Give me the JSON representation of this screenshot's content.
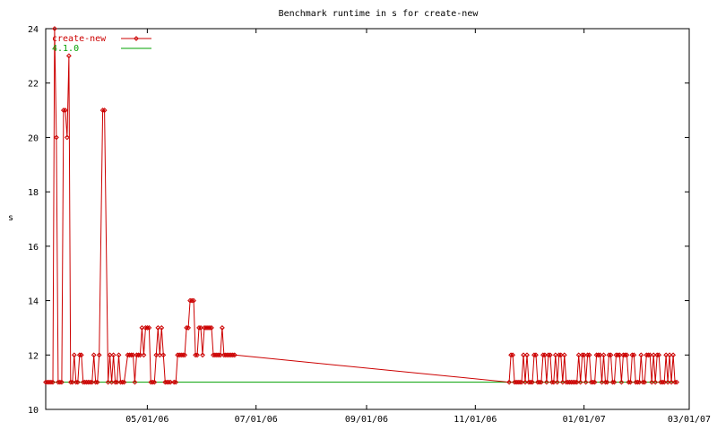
{
  "chart_data": {
    "type": "line",
    "title": "Benchmark runtime in s for create-new",
    "xlabel": "",
    "ylabel": "s",
    "x_axis_type": "date",
    "xlim": [
      "2006-03-05",
      "2007-03-01"
    ],
    "ylim": [
      10,
      24
    ],
    "yticks": [
      10,
      12,
      14,
      16,
      18,
      20,
      22,
      24
    ],
    "xticks": [
      "2006-05-01",
      "2006-07-01",
      "2006-09-01",
      "2006-11-01",
      "2007-01-01",
      "2007-03-01"
    ],
    "xtick_labels": [
      "05/01/06",
      "07/01/06",
      "09/01/06",
      "11/01/06",
      "01/01/07",
      "03/01/07"
    ],
    "grid": false,
    "legend_position": "top-left",
    "series": [
      {
        "name": "create-new",
        "color": "#cc0000",
        "marker": "diamond",
        "points": [
          [
            "2006-03-05",
            11
          ],
          [
            "2006-03-06",
            11
          ],
          [
            "2006-03-07",
            11
          ],
          [
            "2006-03-08",
            11
          ],
          [
            "2006-03-09",
            11
          ],
          [
            "2006-03-10",
            24
          ],
          [
            "2006-03-11",
            20
          ],
          [
            "2006-03-12",
            11
          ],
          [
            "2006-03-13",
            11
          ],
          [
            "2006-03-14",
            11
          ],
          [
            "2006-03-15",
            21
          ],
          [
            "2006-03-16",
            21
          ],
          [
            "2006-03-17",
            20
          ],
          [
            "2006-03-18",
            23
          ],
          [
            "2006-03-19",
            11
          ],
          [
            "2006-03-20",
            11
          ],
          [
            "2006-03-21",
            12
          ],
          [
            "2006-03-22",
            11
          ],
          [
            "2006-03-23",
            11
          ],
          [
            "2006-03-24",
            12
          ],
          [
            "2006-03-25",
            12
          ],
          [
            "2006-03-26",
            11
          ],
          [
            "2006-03-27",
            11
          ],
          [
            "2006-03-28",
            11
          ],
          [
            "2006-03-29",
            11
          ],
          [
            "2006-03-30",
            11
          ],
          [
            "2006-03-31",
            11
          ],
          [
            "2006-04-01",
            12
          ],
          [
            "2006-04-02",
            11
          ],
          [
            "2006-04-03",
            11
          ],
          [
            "2006-04-04",
            12
          ],
          [
            "2006-04-06",
            21
          ],
          [
            "2006-04-07",
            21
          ],
          [
            "2006-04-09",
            11
          ],
          [
            "2006-04-10",
            12
          ],
          [
            "2006-04-11",
            11
          ],
          [
            "2006-04-12",
            12
          ],
          [
            "2006-04-13",
            11
          ],
          [
            "2006-04-14",
            11
          ],
          [
            "2006-04-15",
            12
          ],
          [
            "2006-04-16",
            11
          ],
          [
            "2006-04-17",
            11
          ],
          [
            "2006-04-18",
            11
          ],
          [
            "2006-04-20",
            12
          ],
          [
            "2006-04-21",
            12
          ],
          [
            "2006-04-22",
            12
          ],
          [
            "2006-04-23",
            12
          ],
          [
            "2006-04-24",
            11
          ],
          [
            "2006-04-25",
            12
          ],
          [
            "2006-04-26",
            12
          ],
          [
            "2006-04-27",
            12
          ],
          [
            "2006-04-28",
            13
          ],
          [
            "2006-04-29",
            12
          ],
          [
            "2006-04-30",
            13
          ],
          [
            "2006-05-01",
            13
          ],
          [
            "2006-05-02",
            13
          ],
          [
            "2006-05-03",
            11
          ],
          [
            "2006-05-04",
            11
          ],
          [
            "2006-05-05",
            11
          ],
          [
            "2006-05-06",
            12
          ],
          [
            "2006-05-07",
            13
          ],
          [
            "2006-05-08",
            12
          ],
          [
            "2006-05-09",
            13
          ],
          [
            "2006-05-10",
            12
          ],
          [
            "2006-05-11",
            11
          ],
          [
            "2006-05-12",
            11
          ],
          [
            "2006-05-13",
            11
          ],
          [
            "2006-05-14",
            11
          ],
          [
            "2006-05-16",
            11
          ],
          [
            "2006-05-17",
            11
          ],
          [
            "2006-05-18",
            12
          ],
          [
            "2006-05-19",
            12
          ],
          [
            "2006-05-20",
            12
          ],
          [
            "2006-05-21",
            12
          ],
          [
            "2006-05-22",
            12
          ],
          [
            "2006-05-23",
            13
          ],
          [
            "2006-05-24",
            13
          ],
          [
            "2006-05-25",
            14
          ],
          [
            "2006-05-26",
            14
          ],
          [
            "2006-05-27",
            14
          ],
          [
            "2006-05-28",
            12
          ],
          [
            "2006-05-29",
            12
          ],
          [
            "2006-05-30",
            13
          ],
          [
            "2006-05-31",
            13
          ],
          [
            "2006-06-01",
            12
          ],
          [
            "2006-06-02",
            13
          ],
          [
            "2006-06-03",
            13
          ],
          [
            "2006-06-04",
            13
          ],
          [
            "2006-06-05",
            13
          ],
          [
            "2006-06-06",
            13
          ],
          [
            "2006-06-07",
            12
          ],
          [
            "2006-06-08",
            12
          ],
          [
            "2006-06-09",
            12
          ],
          [
            "2006-06-10",
            12
          ],
          [
            "2006-06-11",
            12
          ],
          [
            "2006-06-12",
            13
          ],
          [
            "2006-06-13",
            12
          ],
          [
            "2006-06-14",
            12
          ],
          [
            "2006-06-15",
            12
          ],
          [
            "2006-06-16",
            12
          ],
          [
            "2006-06-17",
            12
          ],
          [
            "2006-06-18",
            12
          ],
          [
            "2006-06-19",
            12
          ],
          [
            "2006-11-20",
            11
          ],
          [
            "2006-11-21",
            12
          ],
          [
            "2006-11-22",
            12
          ],
          [
            "2006-11-23",
            11
          ],
          [
            "2006-11-24",
            11
          ],
          [
            "2006-11-25",
            11
          ],
          [
            "2006-11-26",
            11
          ],
          [
            "2006-11-27",
            11
          ],
          [
            "2006-11-28",
            12
          ],
          [
            "2006-11-29",
            11
          ],
          [
            "2006-11-30",
            12
          ],
          [
            "2006-12-01",
            11
          ],
          [
            "2006-12-02",
            11
          ],
          [
            "2006-12-03",
            11
          ],
          [
            "2006-12-04",
            12
          ],
          [
            "2006-12-05",
            12
          ],
          [
            "2006-12-06",
            11
          ],
          [
            "2006-12-07",
            11
          ],
          [
            "2006-12-08",
            11
          ],
          [
            "2006-12-09",
            12
          ],
          [
            "2006-12-10",
            12
          ],
          [
            "2006-12-11",
            11
          ],
          [
            "2006-12-12",
            12
          ],
          [
            "2006-12-13",
            12
          ],
          [
            "2006-12-14",
            11
          ],
          [
            "2006-12-15",
            11
          ],
          [
            "2006-12-16",
            12
          ],
          [
            "2006-12-17",
            11
          ],
          [
            "2006-12-18",
            12
          ],
          [
            "2006-12-19",
            12
          ],
          [
            "2006-12-20",
            11
          ],
          [
            "2006-12-21",
            12
          ],
          [
            "2006-12-22",
            11
          ],
          [
            "2006-12-23",
            11
          ],
          [
            "2006-12-24",
            11
          ],
          [
            "2006-12-25",
            11
          ],
          [
            "2006-12-26",
            11
          ],
          [
            "2006-12-27",
            11
          ],
          [
            "2006-12-28",
            11
          ],
          [
            "2006-12-29",
            12
          ],
          [
            "2006-12-30",
            11
          ],
          [
            "2006-12-31",
            12
          ],
          [
            "2007-01-01",
            12
          ],
          [
            "2007-01-02",
            11
          ],
          [
            "2007-01-03",
            12
          ],
          [
            "2007-01-04",
            12
          ],
          [
            "2007-01-05",
            11
          ],
          [
            "2007-01-06",
            11
          ],
          [
            "2007-01-07",
            11
          ],
          [
            "2007-01-08",
            12
          ],
          [
            "2007-01-09",
            12
          ],
          [
            "2007-01-10",
            12
          ],
          [
            "2007-01-11",
            11
          ],
          [
            "2007-01-12",
            12
          ],
          [
            "2007-01-13",
            11
          ],
          [
            "2007-01-14",
            11
          ],
          [
            "2007-01-15",
            12
          ],
          [
            "2007-01-16",
            12
          ],
          [
            "2007-01-17",
            11
          ],
          [
            "2007-01-18",
            11
          ],
          [
            "2007-01-19",
            12
          ],
          [
            "2007-01-20",
            12
          ],
          [
            "2007-01-21",
            12
          ],
          [
            "2007-01-22",
            11
          ],
          [
            "2007-01-23",
            12
          ],
          [
            "2007-01-24",
            12
          ],
          [
            "2007-01-25",
            12
          ],
          [
            "2007-01-26",
            11
          ],
          [
            "2007-01-27",
            11
          ],
          [
            "2007-01-28",
            12
          ],
          [
            "2007-01-29",
            12
          ],
          [
            "2007-01-30",
            11
          ],
          [
            "2007-01-31",
            11
          ],
          [
            "2007-02-01",
            11
          ],
          [
            "2007-02-02",
            12
          ],
          [
            "2007-02-03",
            11
          ],
          [
            "2007-02-04",
            11
          ],
          [
            "2007-02-05",
            12
          ],
          [
            "2007-02-06",
            12
          ],
          [
            "2007-02-07",
            12
          ],
          [
            "2007-02-08",
            11
          ],
          [
            "2007-02-09",
            12
          ],
          [
            "2007-02-10",
            11
          ],
          [
            "2007-02-11",
            12
          ],
          [
            "2007-02-12",
            12
          ],
          [
            "2007-02-13",
            11
          ],
          [
            "2007-02-14",
            11
          ],
          [
            "2007-02-15",
            11
          ],
          [
            "2007-02-16",
            12
          ],
          [
            "2007-02-17",
            11
          ],
          [
            "2007-02-18",
            12
          ],
          [
            "2007-02-19",
            11
          ],
          [
            "2007-02-20",
            12
          ],
          [
            "2007-02-21",
            11
          ],
          [
            "2007-02-22",
            11
          ]
        ]
      },
      {
        "name": "4.1.0",
        "color": "#00a000",
        "marker": "none",
        "points": [
          [
            "2006-03-05",
            11
          ],
          [
            "2007-02-22",
            11
          ]
        ]
      }
    ]
  }
}
